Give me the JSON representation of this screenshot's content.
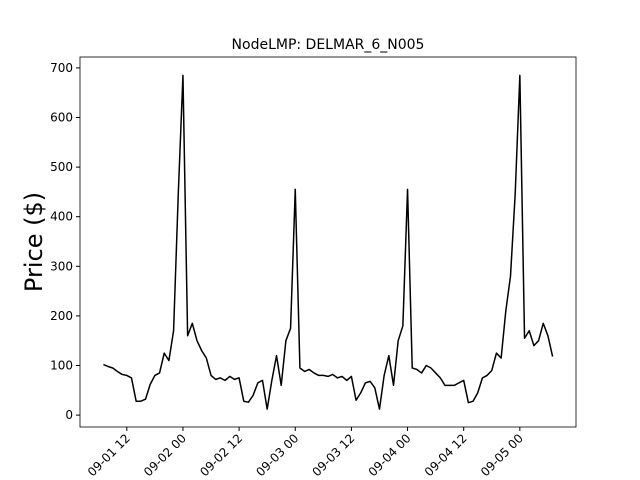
{
  "chart_data": {
    "type": "line",
    "title": "NodeLMP: DELMAR_6_N005",
    "y_label": "Price ($)",
    "x": [
      "09-01 07",
      "09-01 08",
      "09-01 09",
      "09-01 10",
      "09-01 11",
      "09-01 12",
      "09-01 13",
      "09-01 14",
      "09-01 15",
      "09-01 16",
      "09-01 17",
      "09-01 18",
      "09-01 19",
      "09-01 20",
      "09-01 21",
      "09-01 22",
      "09-01 23",
      "09-02 00",
      "09-02 01",
      "09-02 02",
      "09-02 03",
      "09-02 04",
      "09-02 05",
      "09-02 06",
      "09-02 07",
      "09-02 08",
      "09-02 09",
      "09-02 10",
      "09-02 11",
      "09-02 12",
      "09-02 13",
      "09-02 14",
      "09-02 15",
      "09-02 16",
      "09-02 17",
      "09-02 18",
      "09-02 19",
      "09-02 20",
      "09-02 21",
      "09-02 22",
      "09-02 23",
      "09-03 00",
      "09-03 01",
      "09-03 02",
      "09-03 03",
      "09-03 04",
      "09-03 05",
      "09-03 06",
      "09-03 07",
      "09-03 08",
      "09-03 09",
      "09-03 10",
      "09-03 11",
      "09-03 12",
      "09-03 13",
      "09-03 14",
      "09-03 15",
      "09-03 16",
      "09-03 17",
      "09-03 18",
      "09-03 19",
      "09-03 20",
      "09-03 21",
      "09-03 22",
      "09-03 23",
      "09-04 00",
      "09-04 01",
      "09-04 02",
      "09-04 03",
      "09-04 04",
      "09-04 05",
      "09-04 06",
      "09-04 07",
      "09-04 08",
      "09-04 09",
      "09-04 10",
      "09-04 11",
      "09-04 12",
      "09-04 13",
      "09-04 14",
      "09-04 15",
      "09-04 16",
      "09-04 17",
      "09-04 18",
      "09-04 19",
      "09-04 20",
      "09-04 21",
      "09-04 22",
      "09-04 23",
      "09-05 00",
      "09-05 01",
      "09-05 02",
      "09-05 03",
      "09-05 04",
      "09-05 05",
      "09-05 06",
      "09-05 07"
    ],
    "series": [
      {
        "name": "DELMAR_6_N005",
        "color": "#000000",
        "values": [
          102,
          98,
          95,
          88,
          82,
          80,
          75,
          28,
          28,
          32,
          62,
          80,
          85,
          125,
          110,
          170,
          445,
          685,
          160,
          185,
          150,
          130,
          115,
          80,
          72,
          75,
          70,
          78,
          72,
          75,
          28,
          26,
          40,
          65,
          70,
          12,
          70,
          120,
          60,
          150,
          175,
          455,
          95,
          88,
          92,
          85,
          80,
          80,
          78,
          82,
          75,
          78,
          70,
          78,
          30,
          45,
          65,
          68,
          55,
          12,
          80,
          120,
          60,
          150,
          180,
          455,
          95,
          92,
          85,
          100,
          95,
          85,
          75,
          60,
          60,
          60,
          65,
          70,
          25,
          28,
          45,
          75,
          80,
          90,
          125,
          115,
          210,
          280,
          445,
          685,
          155,
          170,
          140,
          150,
          185,
          160,
          118
        ]
      }
    ],
    "xlim": [
      "09-01 02",
      "09-05 12"
    ],
    "xticks": [
      "09-01 12",
      "09-02 00",
      "09-02 12",
      "09-03 00",
      "09-03 12",
      "09-04 00",
      "09-04 12",
      "09-05 00"
    ],
    "ylim": [
      -24,
      722
    ],
    "yticks": [
      0,
      100,
      200,
      300,
      400,
      500,
      600,
      700
    ]
  }
}
